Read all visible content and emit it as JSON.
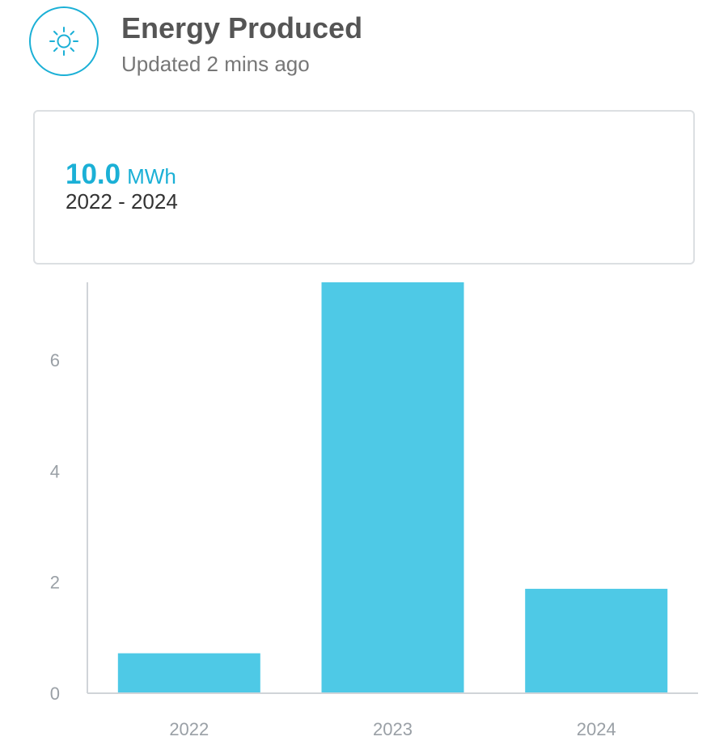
{
  "header": {
    "icon": "sun-icon",
    "title": "Energy Produced",
    "subtitle": "Updated 2 mins ago"
  },
  "summary": {
    "value": "10.0",
    "unit": "MWh",
    "range": "2022 - 2024"
  },
  "colors": {
    "accent": "#1bb0d6",
    "bar": "#4ec9e6",
    "axis": "#d0d4d8",
    "tick_text": "#9aa0a6"
  },
  "chart_data": {
    "type": "bar",
    "categories": [
      "2022",
      "2023",
      "2024"
    ],
    "values": [
      0.72,
      7.4,
      1.88
    ],
    "y_ticks": [
      "0",
      "2",
      "4",
      "6"
    ],
    "title": "",
    "xlabel": "",
    "ylabel": "",
    "ylim": [
      0,
      7.4
    ],
    "grid": false
  }
}
